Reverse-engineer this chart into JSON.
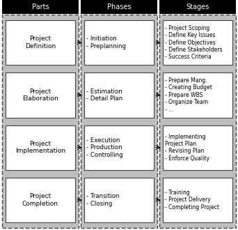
{
  "title_parts": "Parts",
  "title_phases": "Phases",
  "title_stages": "Stages",
  "header_bg": "#000000",
  "header_fg": "#ffffff",
  "outer_bg": "#bebebe",
  "inner_bg": "#ffffff",
  "box_edge": "#555555",
  "parts": [
    "Project\nDefinition",
    "Project\nElaboration",
    "Project\nImplementation",
    "Project\nCompletion"
  ],
  "phases": [
    "- Initiation\n- Preplanning",
    "- Estimation\n- Detail Plan",
    "- Execution\n- Production\n- Controlling",
    "- Transition\n- Closing"
  ],
  "stages": [
    "- Project Scoping\n- Define Key Issues\n- Define Objectives\n- Define Stakeholders\n- Success Criteria",
    "- Prepare Mang.\n- Creating Budget\n- Prepare WBS\n- Organize Team\n- ...",
    "- Implementing\nProject Plan\n- Revising Plan\n- Enforce Quality",
    "- Training\n- Project Delivery\n- Completing Project"
  ],
  "fig_width": 3.42,
  "fig_height": 3.3,
  "dpi": 100
}
